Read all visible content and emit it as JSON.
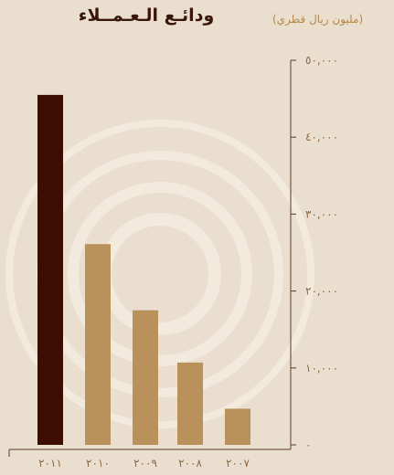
{
  "colors": {
    "background": "#eadfcf",
    "axis": "#5a3a2a",
    "highlight_bar": "#3d0c02",
    "bar": "#b8925a",
    "tick_text": "#8a6a46",
    "title": "#3a1608",
    "unit": "#b38a4a",
    "watermark": "#f4ece0"
  },
  "chart_data": {
    "type": "bar",
    "title": "ودائـع الـعـمــلاء",
    "ylabel": "(مليون ريال قطري)",
    "categories": [
      "٢٠١١",
      "٢٠١٠",
      "٢٠٠٩",
      "٢٠٠٨",
      "٢٠٠٧"
    ],
    "values": [
      45500,
      26100,
      17500,
      10700,
      4700
    ],
    "highlight_index": 0,
    "ylim": [
      0,
      50000
    ],
    "yticks": [
      0,
      10000,
      20000,
      30000,
      40000,
      50000
    ],
    "ytick_labels": [
      "٠",
      "١٠,٠٠٠",
      "٢٠,٠٠٠",
      "٣٠,٠٠٠",
      "٤٠,٠٠٠",
      "٥٠,٠٠٠"
    ],
    "grid": false,
    "y_axis_side": "right"
  }
}
